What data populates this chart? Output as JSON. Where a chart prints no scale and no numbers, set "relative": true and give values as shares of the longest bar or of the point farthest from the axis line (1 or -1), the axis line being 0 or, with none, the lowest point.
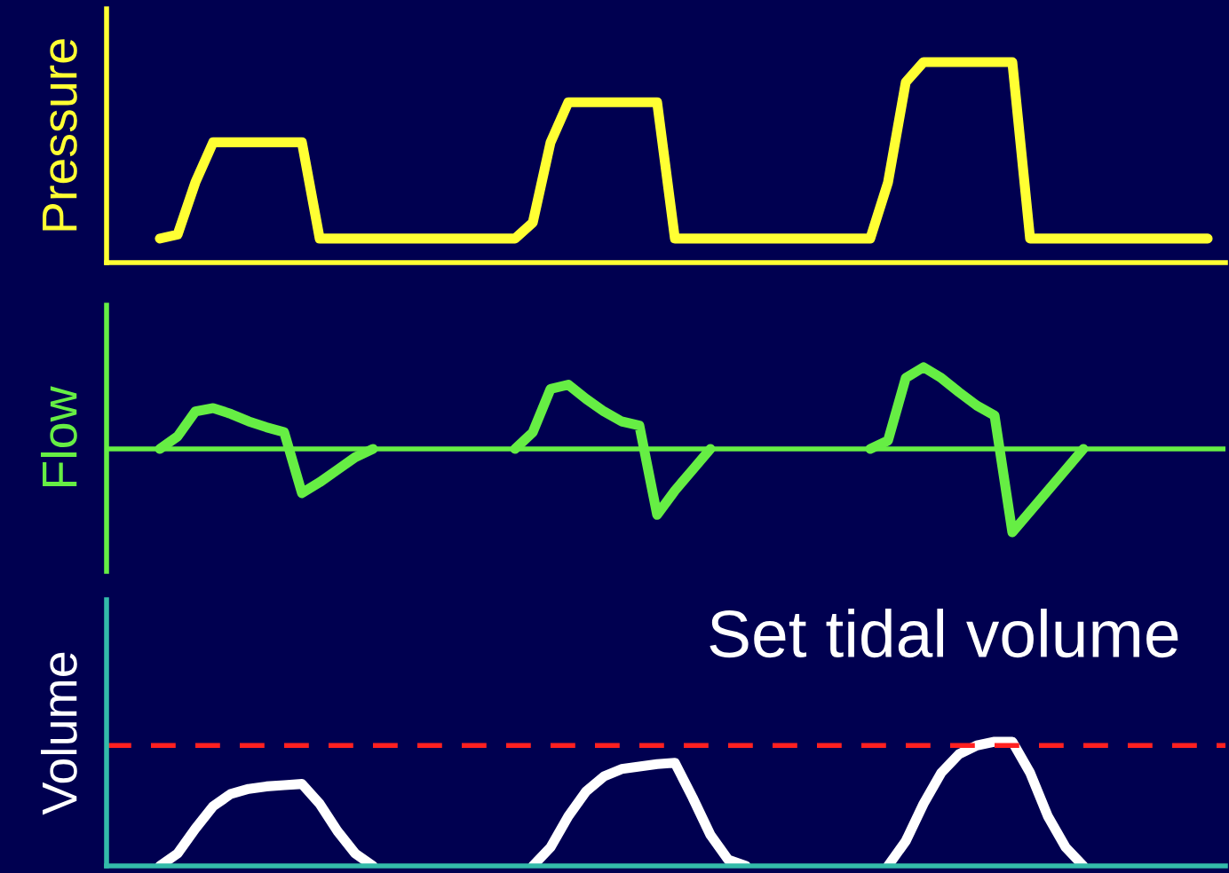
{
  "chart_data": [
    {
      "type": "line",
      "ylabel": "Pressure",
      "relative": true,
      "marker": "none",
      "line_style": "solid",
      "categories": [
        null,
        null,
        null,
        null,
        null,
        null,
        null,
        null,
        null,
        null,
        null,
        null,
        null,
        null,
        null,
        null,
        null,
        null,
        null,
        null,
        null,
        null,
        null,
        null,
        null,
        null,
        null,
        null,
        null,
        null,
        null,
        null,
        null,
        null,
        null,
        null,
        null,
        null,
        null,
        null,
        null,
        null,
        null,
        null,
        null,
        null,
        null,
        null,
        null,
        null,
        null,
        null,
        null,
        null,
        null,
        null,
        null,
        null,
        null,
        null,
        null
      ],
      "series": [
        {
          "color": "#ffff33",
          "values": [
            null,
            0.12,
            0.14,
            0.4,
            0.6,
            0.6,
            0.6,
            0.6,
            0.6,
            0.6,
            0.12,
            0.12,
            0.12,
            0.12,
            0.12,
            0.12,
            0.12,
            0.12,
            0.12,
            0.12,
            0.12,
            0.12,
            0.2,
            0.6,
            0.8,
            0.8,
            0.8,
            0.8,
            0.8,
            0.8,
            0.12,
            0.12,
            0.12,
            0.12,
            0.12,
            0.12,
            0.12,
            0.12,
            0.12,
            0.12,
            0.12,
            0.12,
            0.4,
            0.9,
            1,
            1,
            1,
            1,
            1,
            1,
            0.12,
            0.12,
            0.12,
            0.12,
            0.12,
            0.12,
            0.12,
            0.12,
            0.12,
            0.12,
            0.12
          ]
        }
      ]
    },
    {
      "type": "line",
      "ylabel": "Flow",
      "relative": true,
      "ref_lines": [
        {
          "axis": "y",
          "value": 0,
          "color": "#66ee44",
          "line_style": "solid"
        }
      ],
      "marker": "none",
      "line_style": "solid",
      "categories": [
        null,
        null,
        null,
        null,
        null,
        null,
        null,
        null,
        null,
        null,
        null,
        null,
        null,
        null,
        null,
        null,
        null,
        null,
        null,
        null,
        null,
        null,
        null,
        null,
        null,
        null,
        null,
        null,
        null,
        null,
        null,
        null,
        null,
        null,
        null,
        null,
        null,
        null,
        null,
        null,
        null,
        null,
        null,
        null,
        null,
        null,
        null,
        null,
        null,
        null,
        null,
        null,
        null,
        null,
        null,
        null,
        null,
        null,
        null,
        null,
        null
      ],
      "series": [
        {
          "color": "#66ee44",
          "values": [
            null,
            0,
            0.15,
            0.45,
            0.49,
            0.42,
            0.33,
            0.26,
            0.2,
            -0.53,
            -0.4,
            -0.25,
            -0.1,
            0,
            null,
            null,
            null,
            null,
            null,
            null,
            null,
            0,
            0.2,
            0.72,
            0.77,
            0.6,
            0.45,
            0.33,
            0.28,
            -0.79,
            -0.5,
            -0.25,
            0,
            null,
            null,
            null,
            null,
            null,
            null,
            null,
            null,
            0,
            0.1,
            0.85,
            0.98,
            0.85,
            0.68,
            0.52,
            0.4,
            -1,
            -0.75,
            -0.5,
            -0.25,
            0,
            null,
            null,
            null,
            null,
            null,
            null,
            null
          ]
        }
      ]
    },
    {
      "type": "line",
      "ylabel": "Volume",
      "relative": true,
      "marker": "none",
      "line_style": "solid",
      "annotations": [
        "Set tidal volume"
      ],
      "ref_lines": [
        {
          "axis": "y",
          "value": 0.97,
          "color": "#ff2020",
          "line_style": "dashed"
        }
      ],
      "categories": [
        null,
        null,
        null,
        null,
        null,
        null,
        null,
        null,
        null,
        null,
        null,
        null,
        null,
        null,
        null,
        null,
        null,
        null,
        null,
        null,
        null,
        null,
        null,
        null,
        null,
        null,
        null,
        null,
        null,
        null,
        null,
        null,
        null,
        null,
        null,
        null,
        null,
        null,
        null,
        null,
        null,
        null,
        null,
        null,
        null,
        null,
        null,
        null,
        null,
        null,
        null,
        null,
        null,
        null,
        null,
        null,
        null,
        null,
        null,
        null,
        null
      ],
      "series": [
        {
          "color": "#ffffff",
          "values": [
            null,
            0,
            0.1,
            0.3,
            0.48,
            0.58,
            0.62,
            0.64,
            0.65,
            0.66,
            0.5,
            0.28,
            0.1,
            0,
            null,
            null,
            null,
            null,
            null,
            null,
            null,
            null,
            0,
            0.15,
            0.4,
            0.6,
            0.72,
            0.78,
            0.8,
            0.82,
            0.83,
            0.55,
            0.25,
            0.05,
            0,
            null,
            null,
            null,
            null,
            null,
            null,
            null,
            0,
            0.2,
            0.5,
            0.75,
            0.9,
            0.97,
            1,
            1,
            0.75,
            0.4,
            0.15,
            0,
            null,
            null,
            null,
            null,
            null,
            null,
            null
          ]
        }
      ]
    }
  ]
}
